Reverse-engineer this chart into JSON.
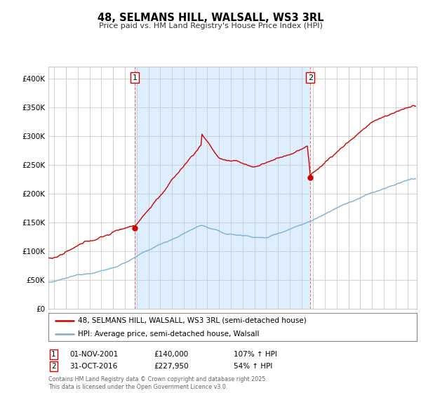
{
  "title": "48, SELMANS HILL, WALSALL, WS3 3RL",
  "subtitle": "Price paid vs. HM Land Registry's House Price Index (HPI)",
  "bg_color": "#ffffff",
  "plot_bg_color": "#ffffff",
  "shade_color": "#ddeeff",
  "red_color": "#cc0000",
  "blue_color": "#7aafd4",
  "grid_color": "#cccccc",
  "legend1": "48, SELMANS HILL, WALSALL, WS3 3RL (semi-detached house)",
  "legend2": "HPI: Average price, semi-detached house, Walsall",
  "note1_num": "1",
  "note1_date": "01-NOV-2001",
  "note1_price": "£140,000",
  "note1_hpi": "107% ↑ HPI",
  "note2_num": "2",
  "note2_date": "31-OCT-2016",
  "note2_price": "£227,950",
  "note2_hpi": "54% ↑ HPI",
  "footer": "Contains HM Land Registry data © Crown copyright and database right 2025.\nThis data is licensed under the Open Government Licence v3.0.",
  "ylim": [
    0,
    420000
  ],
  "yticks": [
    0,
    50000,
    100000,
    150000,
    200000,
    250000,
    300000,
    350000,
    400000
  ],
  "ytick_labels": [
    "£0",
    "£50K",
    "£100K",
    "£150K",
    "£200K",
    "£250K",
    "£300K",
    "£350K",
    "£400K"
  ],
  "sale1_t": 2001.83,
  "sale1_p": 140000,
  "sale2_t": 2016.75,
  "sale2_p": 227950,
  "xmin": 1995.0,
  "xmax": 2025.5
}
